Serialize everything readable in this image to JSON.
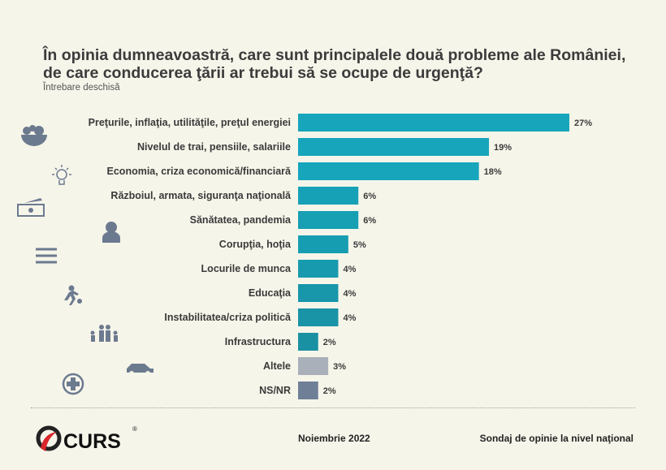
{
  "chart_data": {
    "type": "bar",
    "orientation": "horizontal",
    "title": "În opinia dumneavoastră, care sunt principalele două probleme ale României, de care conducerea ţării ar trebui să se ocupe de urgenţă?",
    "subtitle": "Întrebare deschisă",
    "categories": [
      "Preţurile, inflaţia, utilităţile, preţul energiei",
      "Nivelul de trai, pensiile, salariile",
      "Economia, criza economică/financiară",
      "Războiul, armata, siguranţa naţională",
      "Sănătatea, pandemia",
      "Corupţia, hoţia",
      "Locurile de munca",
      "Educaţia",
      "Instabilitatea/criza politică",
      "Infrastructura",
      "Altele",
      "NS/NR"
    ],
    "values": [
      27,
      19,
      18,
      6,
      6,
      5,
      4,
      4,
      4,
      2,
      3,
      2
    ],
    "value_labels": [
      "27%",
      "19%",
      "18%",
      "6%",
      "6%",
      "5%",
      "4%",
      "4%",
      "4%",
      "2%",
      "3%",
      "2%"
    ],
    "colors": [
      "#17a5bb",
      "#17a5bb",
      "#17a5bb",
      "#17a1b6",
      "#179fb4",
      "#179db2",
      "#189aae",
      "#1896aa",
      "#1993a6",
      "#1a90a3",
      "#a9b0ba",
      "#6f7f96"
    ],
    "unit": "%",
    "grid": false,
    "legend": "none"
  },
  "icons": [
    "fruit-bowl-icon",
    "lightbulb-icon",
    "money-icon",
    "soldier-icon",
    "books-icon",
    "running-person-icon",
    "family-icon",
    "car-icon",
    "medical-cross-icon"
  ],
  "icon_color": "#6c7a8f",
  "footer": {
    "brand": "CURS",
    "date": "Noiembrie 2022",
    "source": "Sondaj de opinie la nivel naţional"
  }
}
